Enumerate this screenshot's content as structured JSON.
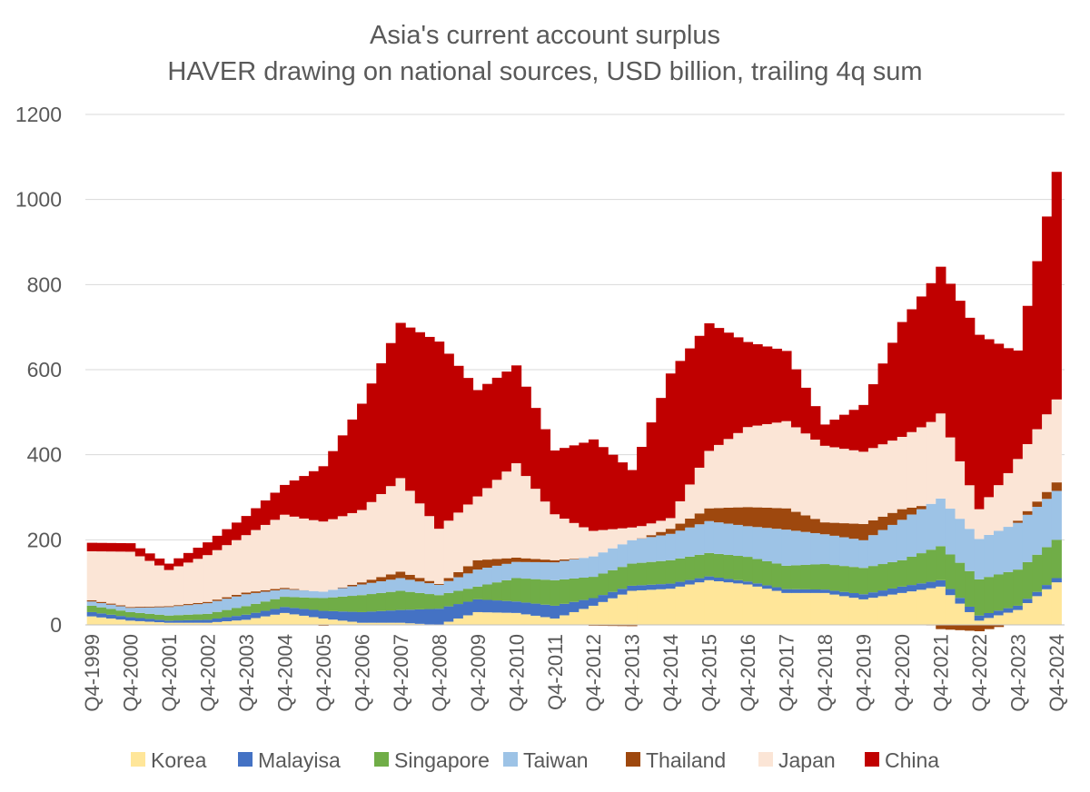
{
  "chart_data": {
    "type": "bar",
    "stacked": true,
    "title": "Asia's current account surplus",
    "subtitle": "HAVER drawing on national sources, USD billion, trailing 4q sum",
    "xlabel": "",
    "ylabel": "",
    "ylim": [
      0,
      1200
    ],
    "yticks": [
      0,
      200,
      400,
      600,
      800,
      1000,
      1200
    ],
    "grid": true,
    "legend_position": "bottom",
    "start_year": 1999,
    "start_quarter": 4,
    "end_year": 2024,
    "end_quarter": 4,
    "x_tick_labels": [
      "Q4-1999",
      "Q4-2000",
      "Q4-2001",
      "Q4-2002",
      "Q4-2003",
      "Q4-2004",
      "Q4-2005",
      "Q4-2006",
      "Q4-2007",
      "Q4-2008",
      "Q4-2009",
      "Q4-2010",
      "Q4-2011",
      "Q4-2012",
      "Q4-2013",
      "Q4-2014",
      "Q4-2015",
      "Q4-2016",
      "Q4-2017",
      "Q4-2018",
      "Q4-2019",
      "Q4-2020",
      "Q4-2021",
      "Q4-2022",
      "Q4-2023",
      "Q4-2024"
    ],
    "anchors": [
      {
        "q": "Q4-1999",
        "korea": 20,
        "malaysia": 10,
        "singapore": 15,
        "taiwan": 10,
        "thailand": 3,
        "japan": 115,
        "china": 20
      },
      {
        "q": "Q4-2000",
        "korea": 10,
        "malaysia": 8,
        "singapore": 12,
        "taiwan": 10,
        "thailand": 2,
        "japan": 130,
        "china": 20
      },
      {
        "q": "Q4-2001",
        "korea": 5,
        "malaysia": 5,
        "singapore": 12,
        "taiwan": 20,
        "thailand": 2,
        "japan": 85,
        "china": 15
      },
      {
        "q": "Q4-2002",
        "korea": 5,
        "malaysia": 7,
        "singapore": 14,
        "taiwan": 25,
        "thailand": 3,
        "japan": 110,
        "china": 30
      },
      {
        "q": "Q4-2003",
        "korea": 12,
        "malaysia": 12,
        "singapore": 20,
        "taiwan": 28,
        "thailand": 4,
        "japan": 135,
        "china": 45
      },
      {
        "q": "Q4-2004",
        "korea": 28,
        "malaysia": 14,
        "singapore": 24,
        "taiwan": 18,
        "thailand": 3,
        "japan": 172,
        "china": 70
      },
      {
        "q": "Q4-2005",
        "korea": 15,
        "malaysia": 18,
        "singapore": 30,
        "taiwan": 15,
        "thailand": -2,
        "japan": 165,
        "china": 130
      },
      {
        "q": "Q4-2006",
        "korea": 5,
        "malaysia": 25,
        "singapore": 40,
        "taiwan": 25,
        "thailand": 5,
        "japan": 170,
        "china": 250
      },
      {
        "q": "Q4-2007",
        "korea": 5,
        "malaysia": 30,
        "singapore": 45,
        "taiwan": 30,
        "thailand": 15,
        "japan": 220,
        "china": 365
      },
      {
        "q": "Q4-2008",
        "korea": 0,
        "malaysia": 38,
        "singapore": 32,
        "taiwan": 24,
        "thailand": 2,
        "japan": 130,
        "china": 440
      },
      {
        "q": "Q4-2009",
        "korea": 30,
        "malaysia": 30,
        "singapore": 30,
        "taiwan": 40,
        "thailand": 22,
        "japan": 150,
        "china": 250
      },
      {
        "q": "Q4-2010",
        "korea": 28,
        "malaysia": 27,
        "singapore": 55,
        "taiwan": 38,
        "thailand": 10,
        "japan": 222,
        "china": 230
      },
      {
        "q": "Q4-2011",
        "korea": 15,
        "malaysia": 30,
        "singapore": 60,
        "taiwan": 42,
        "thailand": 5,
        "japan": 108,
        "china": 150
      },
      {
        "q": "Q4-2012",
        "korea": 45,
        "malaysia": 18,
        "singapore": 50,
        "taiwan": 48,
        "thailand": -2,
        "japan": 60,
        "china": 215
      },
      {
        "q": "Q4-2013",
        "korea": 80,
        "malaysia": 12,
        "singapore": 52,
        "taiwan": 55,
        "thailand": -3,
        "japan": 30,
        "china": 135
      },
      {
        "q": "Q4-2014",
        "korea": 85,
        "malaysia": 12,
        "singapore": 55,
        "taiwan": 62,
        "thailand": 12,
        "japan": 25,
        "china": 340
      },
      {
        "q": "Q4-2015",
        "korea": 105,
        "malaysia": 9,
        "singapore": 55,
        "taiwan": 75,
        "thailand": 30,
        "japan": 135,
        "china": 300
      },
      {
        "q": "Q4-2016",
        "korea": 95,
        "malaysia": 7,
        "singapore": 58,
        "taiwan": 72,
        "thailand": 45,
        "japan": 188,
        "china": 200
      },
      {
        "q": "Q4-2017",
        "korea": 75,
        "malaysia": 9,
        "singapore": 55,
        "taiwan": 85,
        "thailand": 50,
        "japan": 205,
        "china": 165
      },
      {
        "q": "Q4-2018",
        "korea": 75,
        "malaysia": 8,
        "singapore": 60,
        "taiwan": 70,
        "thailand": 28,
        "japan": 180,
        "china": 50
      },
      {
        "q": "Q4-2019",
        "korea": 60,
        "malaysia": 12,
        "singapore": 62,
        "taiwan": 65,
        "thailand": 38,
        "japan": 170,
        "china": 110
      },
      {
        "q": "Q4-2020",
        "korea": 75,
        "malaysia": 15,
        "singapore": 62,
        "taiwan": 95,
        "thailand": 25,
        "japan": 170,
        "china": 270
      },
      {
        "q": "Q4-2021",
        "korea": 90,
        "malaysia": 15,
        "singapore": 80,
        "taiwan": 112,
        "thailand": -10,
        "japan": 200,
        "china": 345
      },
      {
        "q": "Q4-2022",
        "korea": 10,
        "malaysia": 12,
        "singapore": 85,
        "taiwan": 95,
        "thailand": -15,
        "japan": 70,
        "china": 410
      },
      {
        "q": "Q4-2023",
        "korea": 35,
        "malaysia": 10,
        "singapore": 85,
        "taiwan": 110,
        "thailand": 5,
        "japan": 145,
        "china": 255
      },
      {
        "q": "Q4-2024",
        "korea": 100,
        "malaysia": 10,
        "singapore": 90,
        "taiwan": 115,
        "thailand": 20,
        "japan": 195,
        "china": 535
      }
    ],
    "series": [
      {
        "key": "korea",
        "name": "Korea",
        "color": "#ffe699"
      },
      {
        "key": "malaysia",
        "name": "Malayisa",
        "color": "#4472c4"
      },
      {
        "key": "singapore",
        "name": "Singapore",
        "color": "#70ad47"
      },
      {
        "key": "taiwan",
        "name": "Taiwan",
        "color": "#9dc3e6"
      },
      {
        "key": "thailand",
        "name": "Thailand",
        "color": "#9e480e"
      },
      {
        "key": "japan",
        "name": "Japan",
        "color": "#fbe5d6"
      },
      {
        "key": "china",
        "name": "China",
        "color": "#c00000"
      }
    ]
  }
}
